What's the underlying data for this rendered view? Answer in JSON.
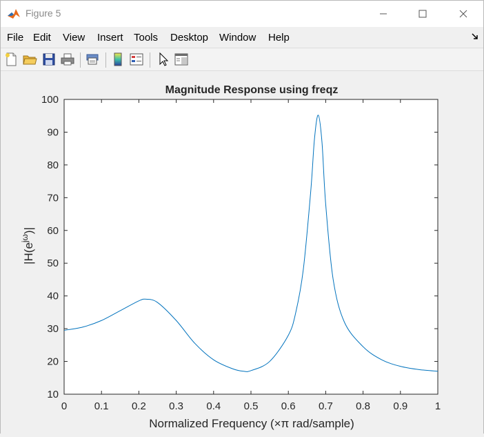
{
  "window": {
    "title": "Figure 5",
    "minimize_label": "",
    "maximize_label": "",
    "close_label": ""
  },
  "menu": {
    "items": [
      "File",
      "Edit",
      "View",
      "Insert",
      "Tools",
      "Desktop",
      "Window",
      "Help"
    ]
  },
  "toolbar": {
    "buttons": [
      "new-figure-icon",
      "open-folder-icon",
      "save-icon",
      "print-icon",
      "print-preview-icon",
      "colorbar-icon",
      "legend-icon",
      "pointer-icon",
      "property-editor-icon"
    ]
  },
  "colors": {
    "line": "#0072bd",
    "grid": "#e0e0e0",
    "axes_bg": "#ffffff",
    "figure_bg": "#f0f0f0"
  },
  "chart_data": {
    "type": "line",
    "title": "Magnitude Response using freqz",
    "xlabel": "Normalized Frequency (×π rad/sample)",
    "ylabel": "|H(e^jω)|",
    "xlim": [
      0,
      1
    ],
    "ylim": [
      10,
      100
    ],
    "xticks": [
      "0",
      "0.1",
      "0.2",
      "0.3",
      "0.4",
      "0.5",
      "0.6",
      "0.7",
      "0.8",
      "0.9",
      "1"
    ],
    "yticks": [
      "10",
      "20",
      "30",
      "40",
      "50",
      "60",
      "70",
      "80",
      "90",
      "100"
    ],
    "grid": true,
    "series": [
      {
        "x": [
          0,
          0.05,
          0.1,
          0.15,
          0.2,
          0.22,
          0.25,
          0.3,
          0.35,
          0.4,
          0.45,
          0.48,
          0.5,
          0.55,
          0.6,
          0.62,
          0.64,
          0.66,
          0.67,
          0.68,
          0.69,
          0.7,
          0.72,
          0.75,
          0.8,
          0.85,
          0.9,
          0.95,
          1
        ],
        "y": [
          29.5,
          30.5,
          32.5,
          35.5,
          38.5,
          39,
          38,
          32.5,
          25.5,
          20.5,
          17.8,
          17,
          17.2,
          20,
          28,
          35,
          48,
          72,
          88,
          95.2,
          87,
          68,
          45,
          32,
          24.5,
          20.5,
          18.5,
          17.5,
          17
        ]
      }
    ]
  }
}
